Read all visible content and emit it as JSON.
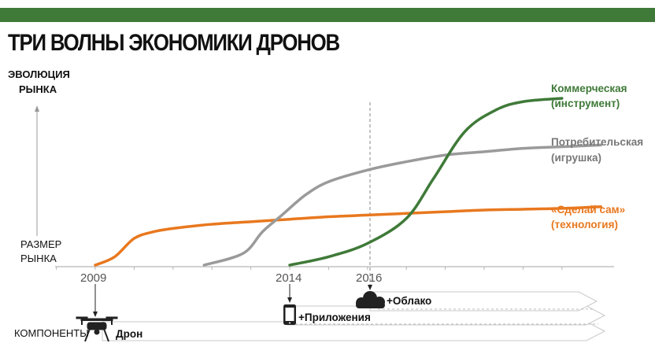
{
  "title": "ТРИ ВОЛНЫ ЭКОНОМИКИ ДРОНОВ",
  "colors": {
    "topbar": "#3f7a38",
    "commercial": "#3f7a38",
    "consumer": "#9a9a9a",
    "diy": "#e8781e",
    "axis": "#b5b5b5",
    "text": "#111111",
    "band": "#ffffff",
    "band_stroke": "#c8c8c8"
  },
  "y_axis": {
    "top_label": [
      "ЭВОЛЮЦИЯ",
      "РЫНКА"
    ],
    "bottom_label": [
      "РАЗМЕР",
      "РЫНКА"
    ]
  },
  "components": {
    "label": "КОМПОНЕНТЫ",
    "items": [
      {
        "label": "Дрон",
        "year": 2009,
        "icon": "drone-icon"
      },
      {
        "label": "+Приложения",
        "year": 2014,
        "icon": "smartphone-icon"
      },
      {
        "label": "+Облако",
        "year": 2016,
        "icon": "cloud-icon"
      }
    ]
  },
  "chart_data": {
    "type": "line",
    "x_ticks": [
      "2009",
      "2014",
      "2016"
    ],
    "vline_at": "2016",
    "series": [
      {
        "name": "«Сделай сам»",
        "name_line2": "(технология)",
        "color_key": "diy",
        "points": [
          [
            2009,
            0.0
          ],
          [
            2009.5,
            0.05
          ],
          [
            2010,
            0.16
          ],
          [
            2010.5,
            0.2
          ],
          [
            2011,
            0.22
          ],
          [
            2012,
            0.245
          ],
          [
            2013,
            0.26
          ],
          [
            2014,
            0.275
          ],
          [
            2015,
            0.29
          ],
          [
            2016,
            0.3
          ],
          [
            2017,
            0.31
          ],
          [
            2018,
            0.32
          ],
          [
            2019,
            0.33
          ],
          [
            2020,
            0.335
          ],
          [
            2021,
            0.34
          ],
          [
            2022,
            0.35
          ]
        ]
      },
      {
        "name": "Потребительская",
        "name_line2": "(игрушка)",
        "color_key": "consumer",
        "points": [
          [
            2011.8,
            0.0
          ],
          [
            2012.8,
            0.07
          ],
          [
            2013.3,
            0.2
          ],
          [
            2013.8,
            0.3
          ],
          [
            2014.4,
            0.42
          ],
          [
            2015,
            0.5
          ],
          [
            2016,
            0.57
          ],
          [
            2017,
            0.62
          ],
          [
            2018,
            0.66
          ],
          [
            2019,
            0.68
          ],
          [
            2020,
            0.7
          ],
          [
            2021,
            0.71
          ],
          [
            2022,
            0.72
          ]
        ]
      },
      {
        "name": "Коммерческая",
        "name_line2": "(инструмент)",
        "color_key": "commercial",
        "points": [
          [
            2014,
            0.0
          ],
          [
            2015,
            0.05
          ],
          [
            2016,
            0.13
          ],
          [
            2017,
            0.28
          ],
          [
            2017.7,
            0.52
          ],
          [
            2018.5,
            0.8
          ],
          [
            2019.3,
            0.93
          ],
          [
            2020,
            0.98
          ],
          [
            2021,
            1.0
          ]
        ]
      }
    ]
  }
}
